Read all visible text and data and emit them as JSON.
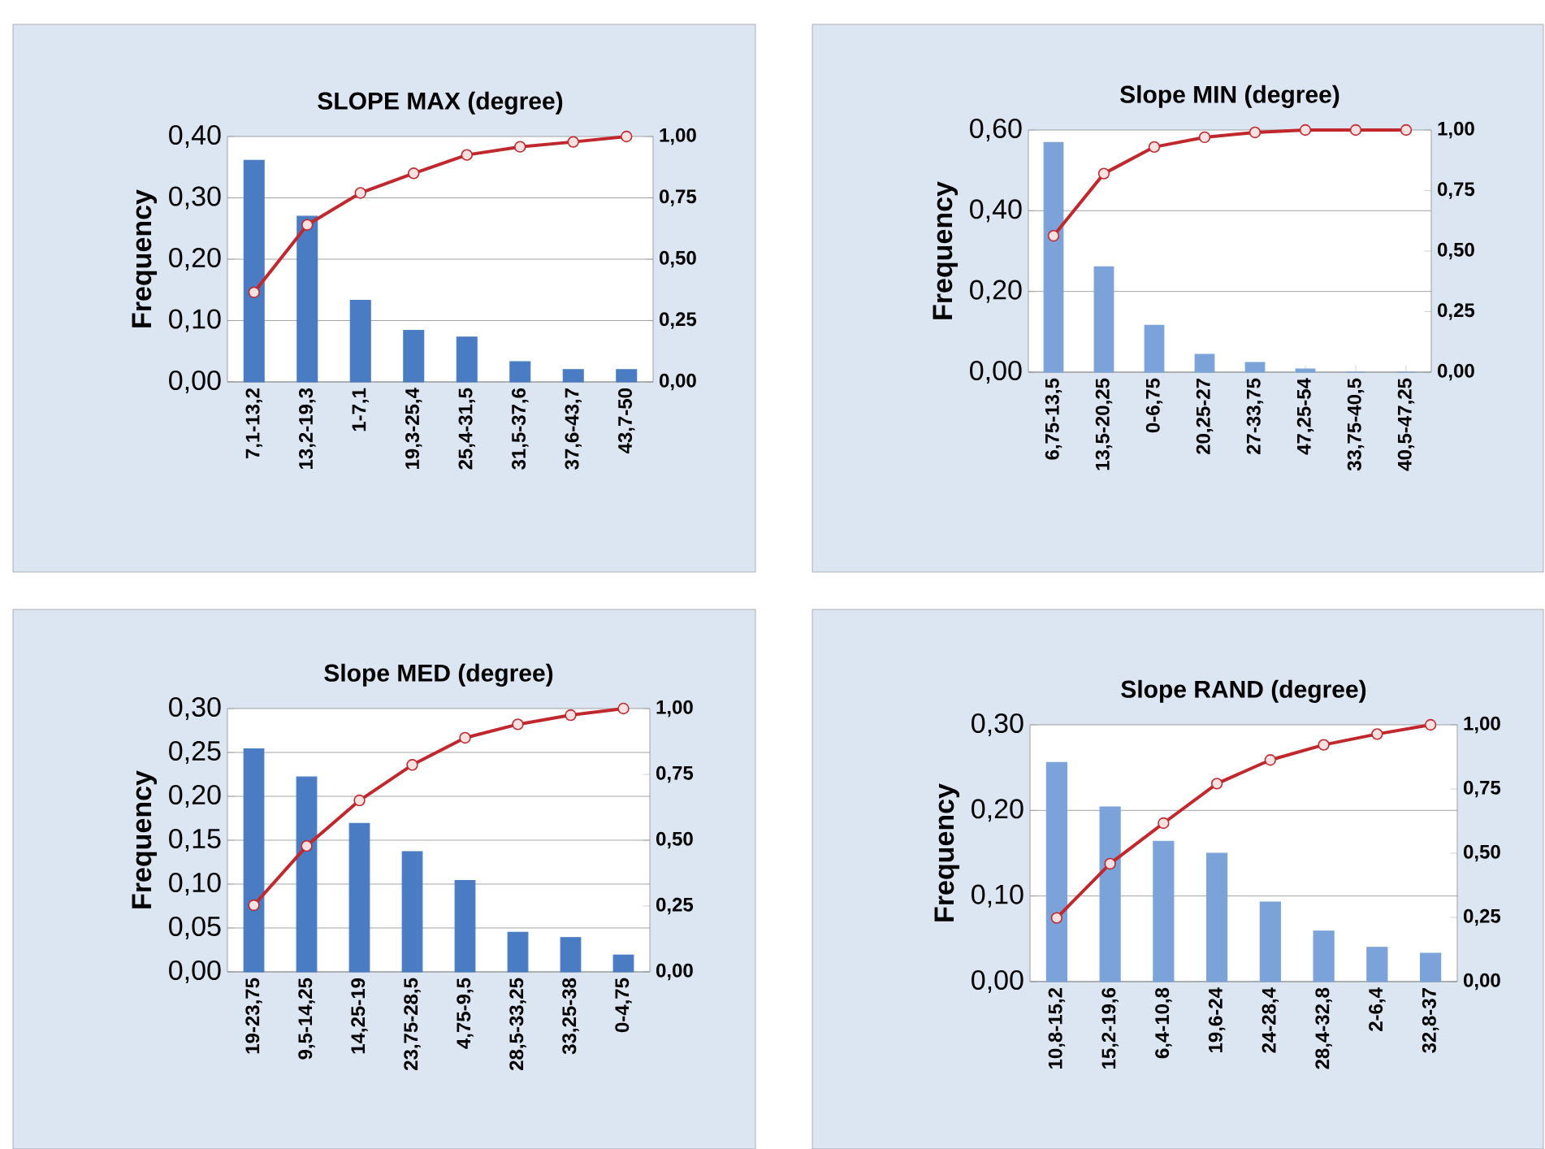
{
  "chart_data": [
    {
      "type": "bar",
      "title": "SLOPE MAX (degree)",
      "ylabel": "Frequency",
      "categories": [
        "7,1-13,2",
        "13,2-19,3",
        "1-7,1",
        "19,3-25,4",
        "25,4-31,5",
        "31,5-37,6",
        "37,6-43,7",
        "43,7-50"
      ],
      "series": [
        {
          "color": "#4a7cc4",
          "values": [
            0.361,
            0.27,
            0.133,
            0.084,
            0.073,
            0.033,
            0.02,
            0.02
          ]
        },
        {
          "type": "line",
          "axis": "y2",
          "color": "#c0282d",
          "marker": "circle",
          "values": [
            0.365,
            0.64,
            0.77,
            0.85,
            0.925,
            0.958,
            0.978,
            1.0
          ]
        }
      ],
      "ylim": [
        0,
        0.4
      ],
      "yticks": [
        {
          "value": 0,
          "label": "0,00"
        },
        {
          "value": 0.1,
          "label": "0,10"
        },
        {
          "value": 0.2,
          "label": "0,20"
        },
        {
          "value": 0.3,
          "label": "0,30"
        },
        {
          "value": 0.4,
          "label": "0,40"
        }
      ],
      "y2lim": [
        0,
        1
      ],
      "y2ticks": [
        {
          "value": 0,
          "label": "0,00"
        },
        {
          "value": 0.25,
          "label": "0,25"
        },
        {
          "value": 0.5,
          "label": "0,50"
        },
        {
          "value": 0.75,
          "label": "0,75"
        },
        {
          "value": 1,
          "label": "1,00"
        }
      ],
      "grid": "y"
    },
    {
      "type": "bar",
      "title": "Slope MIN  (degree)",
      "ylabel": "Frequency",
      "categories": [
        "6,75-13,5",
        "13,5-20,25",
        "0-6,75",
        "20,25-27",
        "27-33,75",
        "47,25-54",
        "33,75-40,5",
        "40,5-47,25"
      ],
      "series": [
        {
          "color": "#7ba3d9",
          "values": [
            0.569,
            0.261,
            0.116,
            0.044,
            0.024,
            0.008,
            0,
            0
          ]
        },
        {
          "type": "line",
          "axis": "y2",
          "color": "#c0282d",
          "marker": "circle",
          "values": [
            0.563,
            0.82,
            0.93,
            0.97,
            0.99,
            1.0,
            1.0,
            1.0
          ]
        }
      ],
      "ylim": [
        0,
        0.6
      ],
      "yticks": [
        {
          "value": 0,
          "label": "0,00"
        },
        {
          "value": 0.2,
          "label": "0,20"
        },
        {
          "value": 0.4,
          "label": "0,40"
        },
        {
          "value": 0.6,
          "label": "0,60"
        }
      ],
      "y2lim": [
        0,
        1
      ],
      "y2ticks": [
        {
          "value": 0,
          "label": "0,00"
        },
        {
          "value": 0.25,
          "label": "0,25"
        },
        {
          "value": 0.5,
          "label": "0,50"
        },
        {
          "value": 0.75,
          "label": "0,75"
        },
        {
          "value": 1,
          "label": "1,00"
        }
      ],
      "grid": "y"
    },
    {
      "type": "bar",
      "title": "Slope MED  (degree)",
      "ylabel": "Frequency",
      "categories": [
        "19-23,75",
        "9,5-14,25",
        "14,25-19",
        "23,75-28,5",
        "4,75-9,5",
        "28,5-33,25",
        "33,25-38",
        "0-4,75"
      ],
      "series": [
        {
          "color": "#4a7cc4",
          "values": [
            0.254,
            0.222,
            0.169,
            0.137,
            0.104,
            0.045,
            0.039,
            0.019
          ]
        },
        {
          "type": "line",
          "axis": "y2",
          "color": "#c0282d",
          "marker": "circle",
          "values": [
            0.253,
            0.478,
            0.651,
            0.786,
            0.889,
            0.94,
            0.975,
            1.0
          ]
        }
      ],
      "ylim": [
        0,
        0.3
      ],
      "yticks": [
        {
          "value": 0,
          "label": "0,00"
        },
        {
          "value": 0.05,
          "label": "0,05"
        },
        {
          "value": 0.1,
          "label": "0,10"
        },
        {
          "value": 0.15,
          "label": "0,15"
        },
        {
          "value": 0.2,
          "label": "0,20"
        },
        {
          "value": 0.25,
          "label": "0,25"
        },
        {
          "value": 0.3,
          "label": "0,30"
        }
      ],
      "y2lim": [
        0,
        1
      ],
      "y2ticks": [
        {
          "value": 0,
          "label": "0,00"
        },
        {
          "value": 0.25,
          "label": "0,25"
        },
        {
          "value": 0.5,
          "label": "0,50"
        },
        {
          "value": 0.75,
          "label": "0,75"
        },
        {
          "value": 1,
          "label": "1,00"
        }
      ],
      "grid": "y"
    },
    {
      "type": "bar",
      "title": "Slope RAND  (degree)",
      "ylabel": "Frequency",
      "categories": [
        "10,8-15,2",
        "15,2-19,6",
        "6,4-10,8",
        "19,6-24",
        "24-28,4",
        "28,4-32,8",
        "2-6,4",
        "32,8-37"
      ],
      "series": [
        {
          "color": "#7ba3d9",
          "values": [
            0.256,
            0.204,
            0.164,
            0.15,
            0.093,
            0.059,
            0.04,
            0.033
          ]
        },
        {
          "type": "line",
          "axis": "y2",
          "color": "#c0282d",
          "marker": "circle",
          "values": [
            0.248,
            0.459,
            0.617,
            0.771,
            0.863,
            0.922,
            0.964,
            1.0
          ]
        }
      ],
      "ylim": [
        0,
        0.3
      ],
      "yticks": [
        {
          "value": 0,
          "label": "0,00"
        },
        {
          "value": 0.1,
          "label": "0,10"
        },
        {
          "value": 0.2,
          "label": "0,20"
        },
        {
          "value": 0.3,
          "label": "0,30"
        }
      ],
      "y2lim": [
        0,
        1
      ],
      "y2ticks": [
        {
          "value": 0,
          "label": "0,00"
        },
        {
          "value": 0.25,
          "label": "0,25"
        },
        {
          "value": 0.5,
          "label": "0,50"
        },
        {
          "value": 0.75,
          "label": "0,75"
        },
        {
          "value": 1,
          "label": "1,00"
        }
      ],
      "grid": "y"
    }
  ]
}
